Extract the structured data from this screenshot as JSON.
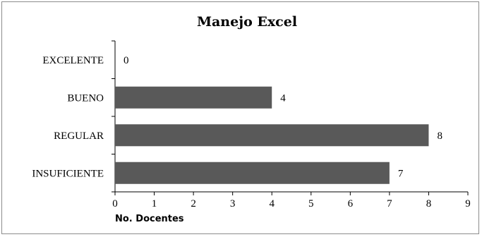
{
  "chart_data": {
    "type": "bar",
    "orientation": "horizontal",
    "title": "Manejo Excel",
    "xlabel": "No. Docentes",
    "ylabel": "",
    "categories": [
      "EXCELENTE",
      "BUENO",
      "REGULAR",
      "INSUFICIENTE"
    ],
    "values": [
      0,
      4,
      8,
      7
    ],
    "xlim": [
      0,
      9
    ],
    "xticks": [
      0,
      1,
      2,
      3,
      4,
      5,
      6,
      7,
      8,
      9
    ],
    "grid": false,
    "legend": "none",
    "data_labels": true,
    "colors": {
      "bar": "#595959",
      "axis": "#000000",
      "text": "#000000"
    }
  }
}
